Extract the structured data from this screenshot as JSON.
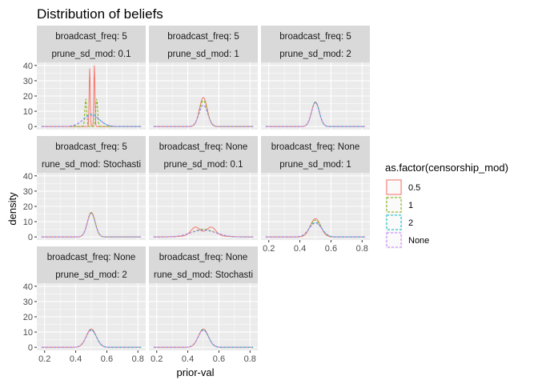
{
  "chart_data": {
    "type": "line",
    "title": "Distribution of beliefs",
    "xlabel": "prior-val",
    "ylabel": "density",
    "xlim": [
      0.15,
      0.85
    ],
    "ylim": [
      -2,
      42
    ],
    "x_ticks": [
      0.2,
      0.4,
      0.6,
      0.8
    ],
    "x_tick_labels": [
      "0.2",
      "0.4",
      "0.6",
      "0.8"
    ],
    "y_ticks": [
      0,
      10,
      20,
      30,
      40
    ],
    "y_tick_labels": [
      "0",
      "10",
      "20",
      "30",
      "40"
    ],
    "grid": true,
    "legend": {
      "title": "as.factor(censorship_mod)",
      "placement": "right",
      "entries": [
        {
          "label": "0.5",
          "color": "#F8766D",
          "dash": "solid"
        },
        {
          "label": "1",
          "color": "#7CAE00",
          "dash": "dashed"
        },
        {
          "label": "2",
          "color": "#00BFC4",
          "dash": "dashed"
        },
        {
          "label": "None",
          "color": "#C77CFF",
          "dash": "dashed"
        }
      ]
    },
    "panels": [
      {
        "strip1": "broadcast_freq: 5",
        "strip2": "prune_sd_mod: 0.1",
        "series": [
          {
            "name": "0.5",
            "components": [
              {
                "mu": 0.49,
                "sd": 0.0035,
                "peak": 38
              },
              {
                "mu": 0.52,
                "sd": 0.0035,
                "peak": 40
              }
            ]
          },
          {
            "name": "1",
            "components": [
              {
                "mu": 0.465,
                "sd": 0.006,
                "peak": 18
              },
              {
                "mu": 0.535,
                "sd": 0.006,
                "peak": 18
              }
            ]
          },
          {
            "name": "2",
            "components": [
              {
                "mu": 0.5,
                "sd": 0.05,
                "peak": 8
              }
            ]
          },
          {
            "name": "None",
            "components": [
              {
                "mu": 0.5,
                "sd": 0.055,
                "peak": 7
              }
            ]
          }
        ]
      },
      {
        "strip1": "broadcast_freq: 5",
        "strip2": "prune_sd_mod: 1",
        "series": [
          {
            "name": "0.5",
            "components": [
              {
                "mu": 0.5,
                "sd": 0.025,
                "peak": 19
              }
            ]
          },
          {
            "name": "1",
            "components": [
              {
                "mu": 0.5,
                "sd": 0.026,
                "peak": 17
              }
            ]
          },
          {
            "name": "2",
            "components": [
              {
                "mu": 0.5,
                "sd": 0.028,
                "peak": 14
              }
            ]
          },
          {
            "name": "None",
            "components": [
              {
                "mu": 0.5,
                "sd": 0.028,
                "peak": 14
              }
            ]
          }
        ]
      },
      {
        "strip1": "broadcast_freq: 5",
        "strip2": "prune_sd_mod: 2",
        "series": [
          {
            "name": "0.5",
            "components": [
              {
                "mu": 0.5,
                "sd": 0.025,
                "peak": 16
              }
            ]
          },
          {
            "name": "1",
            "components": [
              {
                "mu": 0.5,
                "sd": 0.025,
                "peak": 16
              }
            ]
          },
          {
            "name": "2",
            "components": [
              {
                "mu": 0.5,
                "sd": 0.025,
                "peak": 16
              }
            ]
          },
          {
            "name": "None",
            "components": [
              {
                "mu": 0.5,
                "sd": 0.025,
                "peak": 15.5
              }
            ]
          }
        ]
      },
      {
        "strip1": "broadcast_freq: 5",
        "strip2": "rune_sd_mod: Stochasti",
        "series": [
          {
            "name": "0.5",
            "components": [
              {
                "mu": 0.5,
                "sd": 0.025,
                "peak": 16
              }
            ]
          },
          {
            "name": "1",
            "components": [
              {
                "mu": 0.5,
                "sd": 0.025,
                "peak": 16
              }
            ]
          },
          {
            "name": "2",
            "components": [
              {
                "mu": 0.5,
                "sd": 0.025,
                "peak": 15.5
              }
            ]
          },
          {
            "name": "None",
            "components": [
              {
                "mu": 0.5,
                "sd": 0.025,
                "peak": 15.5
              }
            ]
          }
        ]
      },
      {
        "strip1": "broadcast_freq: None",
        "strip2": "prune_sd_mod: 0.1",
        "series": [
          {
            "name": "0.5",
            "components": [
              {
                "mu": 0.45,
                "sd": 0.03,
                "peak": 5.5
              },
              {
                "mu": 0.55,
                "sd": 0.03,
                "peak": 5.5
              },
              {
                "mu": 0.5,
                "sd": 0.11,
                "peak": 1
              }
            ]
          },
          {
            "name": "1",
            "components": [
              {
                "mu": 0.5,
                "sd": 0.075,
                "peak": 5
              }
            ]
          },
          {
            "name": "2",
            "components": [
              {
                "mu": 0.5,
                "sd": 0.08,
                "peak": 4.5
              }
            ]
          },
          {
            "name": "None",
            "components": [
              {
                "mu": 0.5,
                "sd": 0.08,
                "peak": 4.5
              }
            ]
          }
        ]
      },
      {
        "strip1": "broadcast_freq: None",
        "strip2": "prune_sd_mod: 1",
        "series": [
          {
            "name": "0.5",
            "components": [
              {
                "mu": 0.5,
                "sd": 0.033,
                "peak": 12
              }
            ]
          },
          {
            "name": "1",
            "components": [
              {
                "mu": 0.5,
                "sd": 0.036,
                "peak": 11
              }
            ]
          },
          {
            "name": "2",
            "components": [
              {
                "mu": 0.5,
                "sd": 0.04,
                "peak": 9.5
              }
            ]
          },
          {
            "name": "None",
            "components": [
              {
                "mu": 0.5,
                "sd": 0.04,
                "peak": 9
              }
            ]
          }
        ]
      },
      {
        "strip1": "broadcast_freq: None",
        "strip2": "prune_sd_mod: 2",
        "series": [
          {
            "name": "0.5",
            "components": [
              {
                "mu": 0.5,
                "sd": 0.032,
                "peak": 12
              }
            ]
          },
          {
            "name": "1",
            "components": [
              {
                "mu": 0.5,
                "sd": 0.033,
                "peak": 11.5
              }
            ]
          },
          {
            "name": "2",
            "components": [
              {
                "mu": 0.5,
                "sd": 0.033,
                "peak": 11.5
              }
            ]
          },
          {
            "name": "None",
            "components": [
              {
                "mu": 0.5,
                "sd": 0.034,
                "peak": 11
              }
            ]
          }
        ]
      },
      {
        "strip1": "broadcast_freq: None",
        "strip2": "rune_sd_mod: Stochasti",
        "series": [
          {
            "name": "0.5",
            "components": [
              {
                "mu": 0.5,
                "sd": 0.032,
                "peak": 12
              }
            ]
          },
          {
            "name": "1",
            "components": [
              {
                "mu": 0.5,
                "sd": 0.033,
                "peak": 11.5
              }
            ]
          },
          {
            "name": "2",
            "components": [
              {
                "mu": 0.5,
                "sd": 0.033,
                "peak": 11.5
              }
            ]
          },
          {
            "name": "None",
            "components": [
              {
                "mu": 0.5,
                "sd": 0.034,
                "peak": 11
              }
            ]
          }
        ]
      }
    ]
  }
}
